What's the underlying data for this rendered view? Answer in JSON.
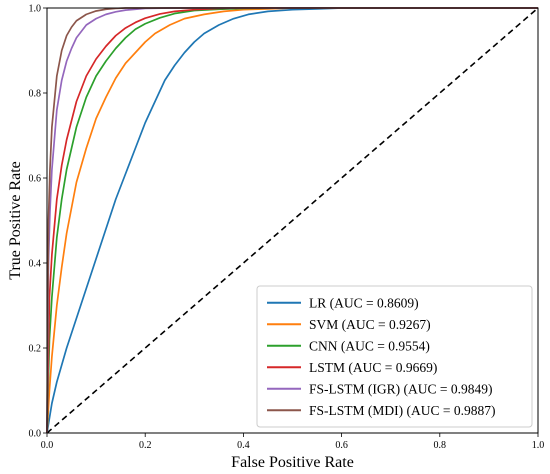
{
  "chart_data": {
    "type": "line",
    "xlabel": "False Positive Rate",
    "ylabel": "True Positive Rate",
    "xlim": [
      0,
      1
    ],
    "ylim": [
      0,
      1
    ],
    "x_ticks": [
      "0.0",
      "0.2",
      "0.4",
      "0.6",
      "0.8",
      "1.0"
    ],
    "y_ticks": [
      "0.0",
      "0.2",
      "0.4",
      "0.6",
      "0.8",
      "1.0"
    ],
    "grid": false,
    "legend_position": "bottom-right",
    "diagonal": {
      "x": [
        0,
        1
      ],
      "y": [
        0,
        1
      ],
      "style": "dashed",
      "color": "#000000"
    },
    "series": [
      {
        "name": "LR (AUC = 0.8609)",
        "color": "#1f77b4",
        "x": [
          0,
          0.01,
          0.02,
          0.04,
          0.06,
          0.08,
          0.1,
          0.12,
          0.14,
          0.16,
          0.18,
          0.2,
          0.22,
          0.24,
          0.26,
          0.28,
          0.3,
          0.32,
          0.35,
          0.38,
          0.41,
          0.45,
          0.5,
          0.55,
          0.6,
          1.0
        ],
        "y": [
          0,
          0.07,
          0.12,
          0.2,
          0.27,
          0.34,
          0.41,
          0.48,
          0.55,
          0.61,
          0.67,
          0.73,
          0.78,
          0.83,
          0.865,
          0.895,
          0.92,
          0.94,
          0.96,
          0.975,
          0.985,
          0.992,
          0.996,
          0.998,
          1.0,
          1.0
        ]
      },
      {
        "name": "SVM (AUC = 0.9267)",
        "color": "#ff7f0e",
        "x": [
          0,
          0.005,
          0.01,
          0.02,
          0.03,
          0.04,
          0.06,
          0.08,
          0.1,
          0.12,
          0.14,
          0.16,
          0.18,
          0.2,
          0.22,
          0.25,
          0.28,
          0.32,
          0.36,
          0.4,
          0.45,
          0.5,
          1.0
        ],
        "y": [
          0,
          0.1,
          0.18,
          0.3,
          0.39,
          0.47,
          0.59,
          0.67,
          0.74,
          0.79,
          0.835,
          0.87,
          0.895,
          0.92,
          0.94,
          0.96,
          0.975,
          0.985,
          0.992,
          0.996,
          0.998,
          1.0,
          1.0
        ]
      },
      {
        "name": "CNN (AUC = 0.9554)",
        "color": "#2ca02c",
        "x": [
          0,
          0.005,
          0.01,
          0.02,
          0.03,
          0.04,
          0.06,
          0.08,
          0.1,
          0.12,
          0.14,
          0.16,
          0.18,
          0.2,
          0.23,
          0.26,
          0.3,
          0.35,
          0.4,
          0.5,
          1.0
        ],
        "y": [
          0,
          0.22,
          0.32,
          0.46,
          0.55,
          0.62,
          0.72,
          0.79,
          0.84,
          0.875,
          0.905,
          0.93,
          0.95,
          0.963,
          0.977,
          0.987,
          0.994,
          0.997,
          0.999,
          1.0,
          1.0
        ]
      },
      {
        "name": "LSTM (AUC = 0.9669)",
        "color": "#d62728",
        "x": [
          0,
          0.005,
          0.01,
          0.02,
          0.03,
          0.04,
          0.06,
          0.08,
          0.1,
          0.12,
          0.14,
          0.16,
          0.18,
          0.2,
          0.23,
          0.26,
          0.3,
          0.35,
          0.4,
          1.0
        ],
        "y": [
          0,
          0.32,
          0.42,
          0.55,
          0.63,
          0.69,
          0.78,
          0.84,
          0.88,
          0.91,
          0.935,
          0.953,
          0.966,
          0.976,
          0.986,
          0.992,
          0.996,
          0.999,
          1.0,
          1.0
        ]
      },
      {
        "name": "FS-LSTM (IGR) (AUC = 0.9849)",
        "color": "#9467bd",
        "x": [
          0,
          0.003,
          0.006,
          0.01,
          0.02,
          0.03,
          0.04,
          0.05,
          0.06,
          0.08,
          0.1,
          0.12,
          0.14,
          0.16,
          0.18,
          0.2,
          0.25,
          0.3,
          1.0
        ],
        "y": [
          0,
          0.4,
          0.52,
          0.62,
          0.76,
          0.83,
          0.875,
          0.905,
          0.93,
          0.96,
          0.975,
          0.985,
          0.991,
          0.995,
          0.997,
          0.999,
          1.0,
          1.0,
          1.0
        ]
      },
      {
        "name": "FS-LSTM (MDI) (AUC = 0.9887)",
        "color": "#8c564b",
        "x": [
          0,
          0.003,
          0.006,
          0.01,
          0.02,
          0.03,
          0.04,
          0.05,
          0.06,
          0.08,
          0.1,
          0.12,
          0.14,
          0.16,
          0.18,
          0.2,
          1.0
        ],
        "y": [
          0,
          0.5,
          0.62,
          0.72,
          0.84,
          0.9,
          0.935,
          0.955,
          0.97,
          0.985,
          0.993,
          0.997,
          0.999,
          1.0,
          1.0,
          1.0,
          1.0
        ]
      }
    ]
  }
}
